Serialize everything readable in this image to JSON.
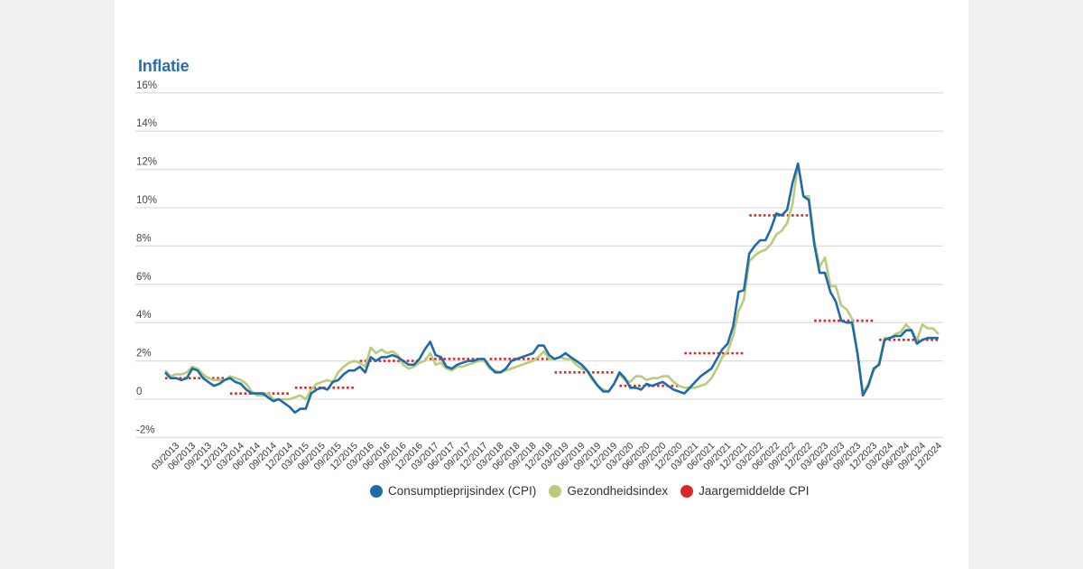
{
  "title": "Inflatie",
  "colors": {
    "cpi": "#1f6aa8",
    "health": "#b9cc7c",
    "annual": "#d62a2a",
    "grid": "#dddddd",
    "title": "#2a6fad"
  },
  "legend": [
    {
      "label": "Consumptieprijsindex (CPI)",
      "color": "#1f6aa8"
    },
    {
      "label": "Gezondheidsindex",
      "color": "#b9cc7c"
    },
    {
      "label": "Jaargemiddelde CPI",
      "color": "#d62a2a"
    }
  ],
  "chart_data": {
    "type": "line",
    "title": "Inflatie",
    "xlabel": "",
    "ylabel": "",
    "ylim": [
      -2,
      16
    ],
    "yticks": [
      -2,
      0,
      2,
      4,
      6,
      8,
      10,
      12,
      14,
      16
    ],
    "ytick_labels": [
      "-2%",
      "0",
      "2%",
      "4%",
      "6%",
      "8%",
      "10%",
      "12%",
      "14%",
      "16%"
    ],
    "grid": true,
    "legend_position": "bottom",
    "x_tick_labels": [
      "03/2013",
      "06/2013",
      "09/2013",
      "12/2013",
      "03/2014",
      "06/2014",
      "09/2014",
      "12/2014",
      "03/2015",
      "06/2015",
      "09/2015",
      "12/2015",
      "03/2016",
      "06/2016",
      "09/2016",
      "12/2016",
      "03/2017",
      "06/2017",
      "09/2017",
      "12/2017",
      "03/2018",
      "06/2018",
      "09/2018",
      "12/2018",
      "03/2019",
      "06/2019",
      "09/2019",
      "12/2019",
      "03/2020",
      "06/2020",
      "09/2020",
      "12/2020",
      "03/2021",
      "06/2021",
      "09/2021",
      "12/2021",
      "03/2022",
      "06/2022",
      "09/2022",
      "12/2022",
      "03/2023",
      "06/2023",
      "09/2023",
      "12/2023",
      "03/2024",
      "06/2024",
      "09/2024",
      "12/2024"
    ],
    "x_start": "01/2013",
    "x_frequency": "monthly",
    "series": [
      {
        "name": "Consumptieprijsindex (CPI)",
        "values": [
          1.4,
          1.1,
          1.1,
          1.0,
          1.1,
          1.6,
          1.5,
          1.1,
          0.9,
          0.7,
          0.8,
          1.0,
          1.1,
          0.9,
          0.8,
          0.5,
          0.3,
          0.3,
          0.3,
          0.1,
          -0.1,
          0.0,
          -0.2,
          -0.4,
          -0.7,
          -0.5,
          -0.5,
          0.3,
          0.5,
          0.6,
          0.5,
          0.9,
          1.0,
          1.3,
          1.5,
          1.5,
          1.7,
          1.4,
          2.2,
          2.0,
          2.2,
          2.2,
          2.3,
          2.2,
          2.0,
          1.8,
          1.8,
          2.1,
          2.6,
          3.0,
          2.3,
          2.2,
          1.7,
          1.6,
          1.8,
          1.9,
          2.0,
          2.0,
          2.1,
          2.1,
          1.7,
          1.4,
          1.4,
          1.6,
          2.0,
          2.1,
          2.2,
          2.3,
          2.4,
          2.8,
          2.8,
          2.3,
          2.1,
          2.2,
          2.4,
          2.2,
          2.0,
          1.8,
          1.5,
          1.1,
          0.7,
          0.4,
          0.4,
          0.8,
          1.4,
          1.1,
          0.6,
          0.6,
          0.5,
          0.8,
          0.7,
          0.8,
          0.9,
          0.7,
          0.5,
          0.4,
          0.3,
          0.6,
          0.9,
          1.2,
          1.4,
          1.6,
          2.1,
          2.6,
          2.9,
          3.8,
          5.6,
          5.7,
          7.6,
          8.0,
          8.3,
          8.3,
          8.9,
          9.7,
          9.6,
          9.9,
          11.3,
          12.3,
          10.6,
          10.4,
          8.1,
          6.6,
          6.6,
          5.6,
          5.1,
          4.1,
          4.0,
          4.0,
          2.4,
          0.2,
          0.7,
          1.6,
          1.8,
          3.1,
          3.2,
          3.3,
          3.3,
          3.6,
          3.6,
          2.9,
          3.1,
          3.2,
          3.2,
          3.2
        ]
      },
      {
        "name": "Gezondheidsindex",
        "values": [
          1.5,
          1.2,
          1.3,
          1.3,
          1.4,
          1.7,
          1.6,
          1.3,
          1.1,
          1.0,
          1.0,
          1.0,
          1.2,
          1.1,
          1.0,
          0.8,
          0.4,
          0.2,
          0.2,
          0.3,
          0.0,
          0.0,
          0.0,
          0.0,
          0.1,
          0.2,
          0.0,
          0.5,
          0.8,
          0.9,
          1.0,
          0.9,
          1.4,
          1.7,
          1.9,
          2.0,
          1.9,
          1.7,
          2.7,
          2.4,
          2.6,
          2.4,
          2.5,
          2.3,
          1.8,
          1.6,
          1.7,
          1.9,
          2.0,
          2.4,
          1.8,
          1.9,
          1.6,
          1.5,
          1.7,
          1.7,
          1.8,
          1.9,
          2.0,
          2.0,
          1.6,
          1.5,
          1.4,
          1.5,
          1.6,
          1.7,
          1.8,
          1.9,
          2.0,
          2.2,
          2.5,
          2.1,
          2.1,
          2.2,
          2.1,
          2.1,
          1.8,
          1.6,
          1.5,
          1.0,
          0.7,
          0.5,
          0.4,
          0.8,
          1.3,
          1.0,
          0.9,
          1.2,
          1.2,
          1.0,
          1.1,
          1.1,
          1.2,
          1.2,
          0.9,
          0.7,
          0.6,
          0.6,
          0.6,
          0.7,
          0.8,
          1.1,
          1.6,
          2.2,
          2.5,
          3.3,
          4.6,
          5.2,
          7.2,
          7.5,
          7.7,
          7.8,
          8.1,
          8.6,
          8.8,
          9.2,
          10.2,
          12.3,
          10.6,
          10.6,
          8.3,
          6.9,
          7.4,
          5.9,
          5.9,
          4.9,
          4.7,
          4.2,
          2.4,
          0.3,
          0.8,
          1.5,
          1.9,
          3.2,
          3.2,
          3.4,
          3.5,
          3.9,
          3.6,
          3.1,
          3.9,
          3.7,
          3.7,
          3.4
        ]
      },
      {
        "name": "Jaargemiddelde CPI",
        "type": "step",
        "years": [
          2013,
          2014,
          2015,
          2016,
          2017,
          2018,
          2019,
          2020,
          2021,
          2022,
          2023,
          2024
        ],
        "values": [
          1.1,
          0.3,
          0.6,
          2.0,
          2.1,
          2.1,
          1.4,
          0.7,
          2.4,
          9.6,
          4.1,
          3.1
        ]
      }
    ]
  }
}
